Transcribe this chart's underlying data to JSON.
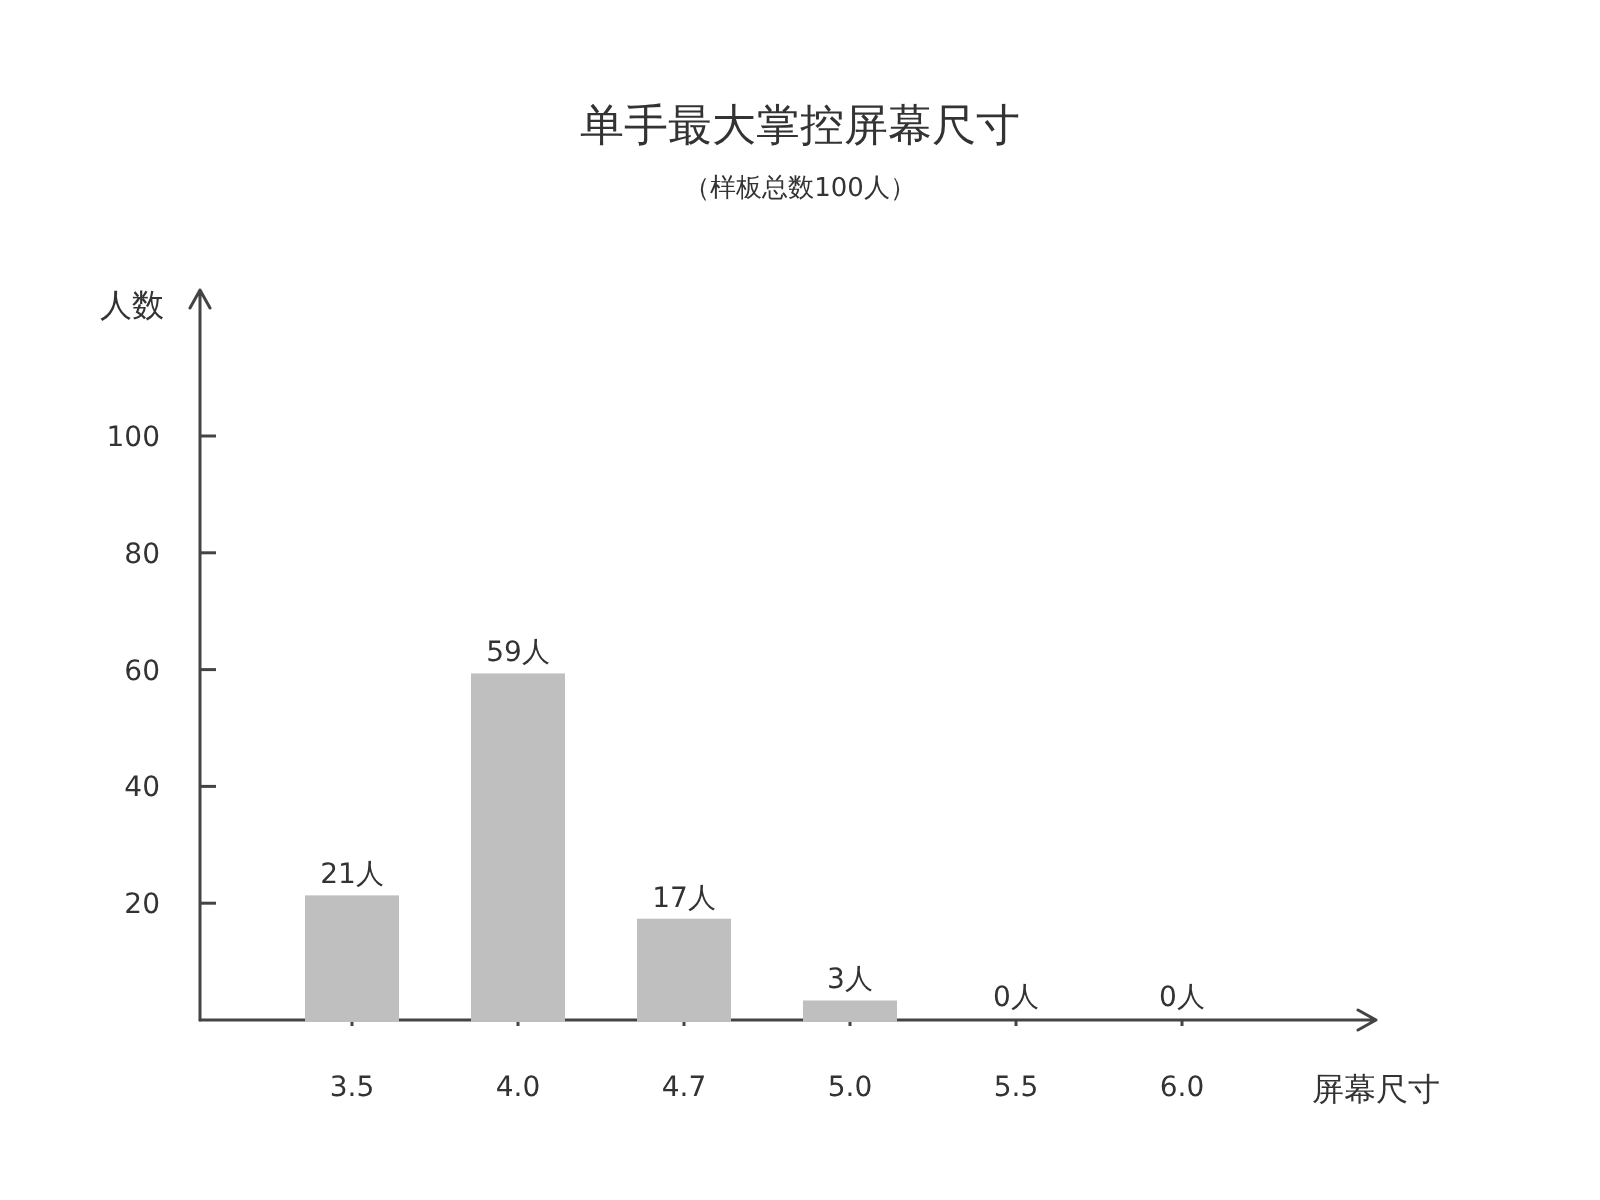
{
  "chart_data": {
    "type": "bar",
    "title": "单手最大掌控屏幕尺寸",
    "subtitle": "（样板总数100人）",
    "xlabel": "屏幕尺寸",
    "ylabel": "人数",
    "categories": [
      "3.5",
      "4.0",
      "4.7",
      "5.0",
      "5.5",
      "6.0"
    ],
    "values": [
      21,
      59,
      17,
      3,
      0,
      0
    ],
    "value_labels": [
      "21人",
      "59人",
      "17人",
      "3人",
      "0人",
      "0人"
    ],
    "color": "#bfbfbf",
    "ylim": [
      0,
      125
    ],
    "yticks": [
      20,
      40,
      60,
      80,
      100
    ]
  }
}
